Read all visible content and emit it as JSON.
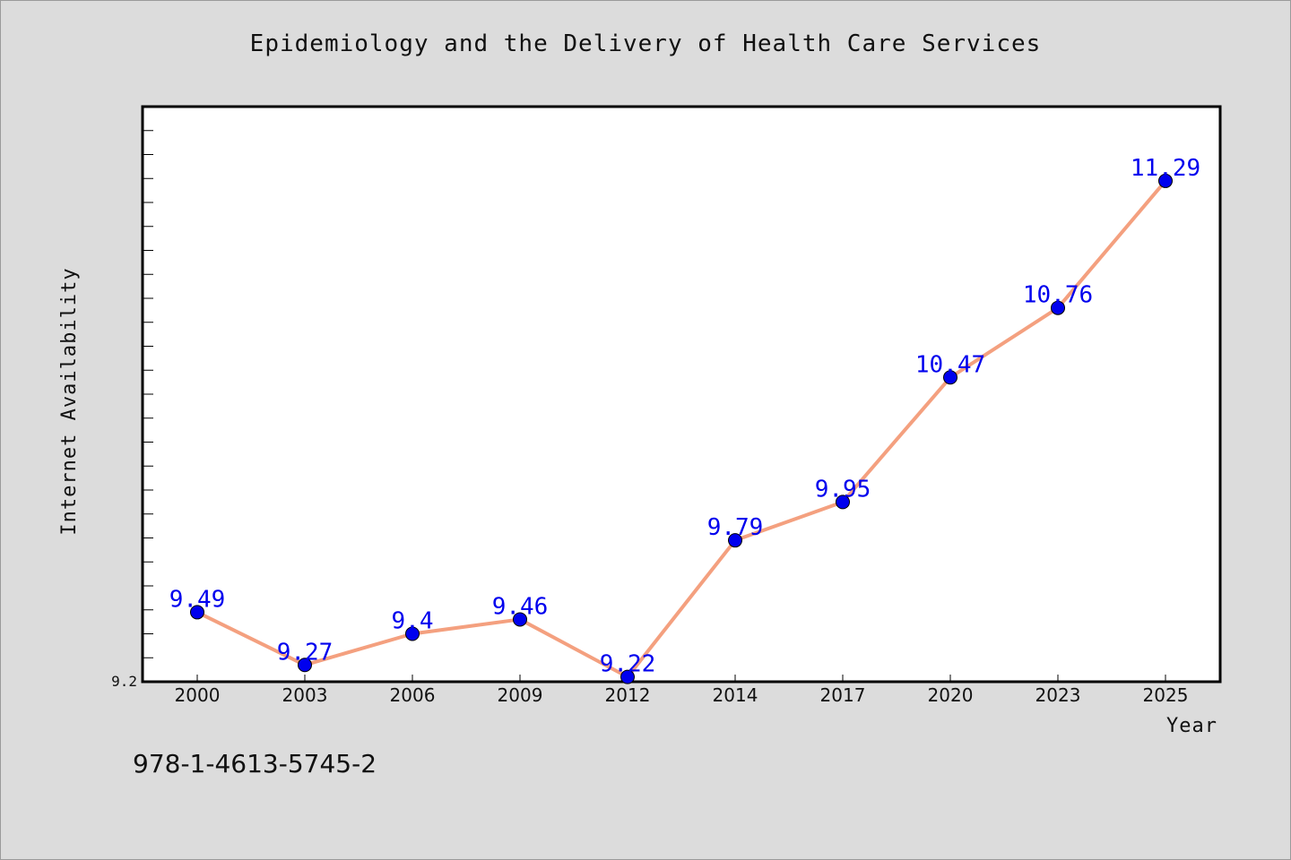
{
  "page": {
    "title": "Epidemiology and the Delivery of Health Care Services",
    "caption": "978-1-4613-5745-2"
  },
  "chart_data": {
    "type": "line",
    "title": "Epidemiology and the Delivery of Health Care Services",
    "xlabel": "Year",
    "ylabel": "Internet Availability",
    "categories": [
      "2000",
      "2003",
      "2006",
      "2009",
      "2012",
      "2014",
      "2017",
      "2020",
      "2023",
      "2025"
    ],
    "values": [
      9.49,
      9.27,
      9.4,
      9.46,
      9.22,
      9.79,
      9.95,
      10.47,
      10.76,
      11.29
    ],
    "data_labels": [
      "9.49",
      "9.27",
      "9.4",
      "9.46",
      "9.22",
      "9.79",
      "9.95",
      "10.47",
      "10.76",
      "11.29"
    ],
    "ylim": [
      9.2,
      11.6
    ],
    "y_tick_labels": [
      "9.2"
    ],
    "line_color": "#f4a07f",
    "marker_color": "#0000ee",
    "label_color": "#0000ee",
    "plot_background": "#ffffff",
    "page_background": "#dcdcdc",
    "grid": false,
    "legend": "none"
  }
}
